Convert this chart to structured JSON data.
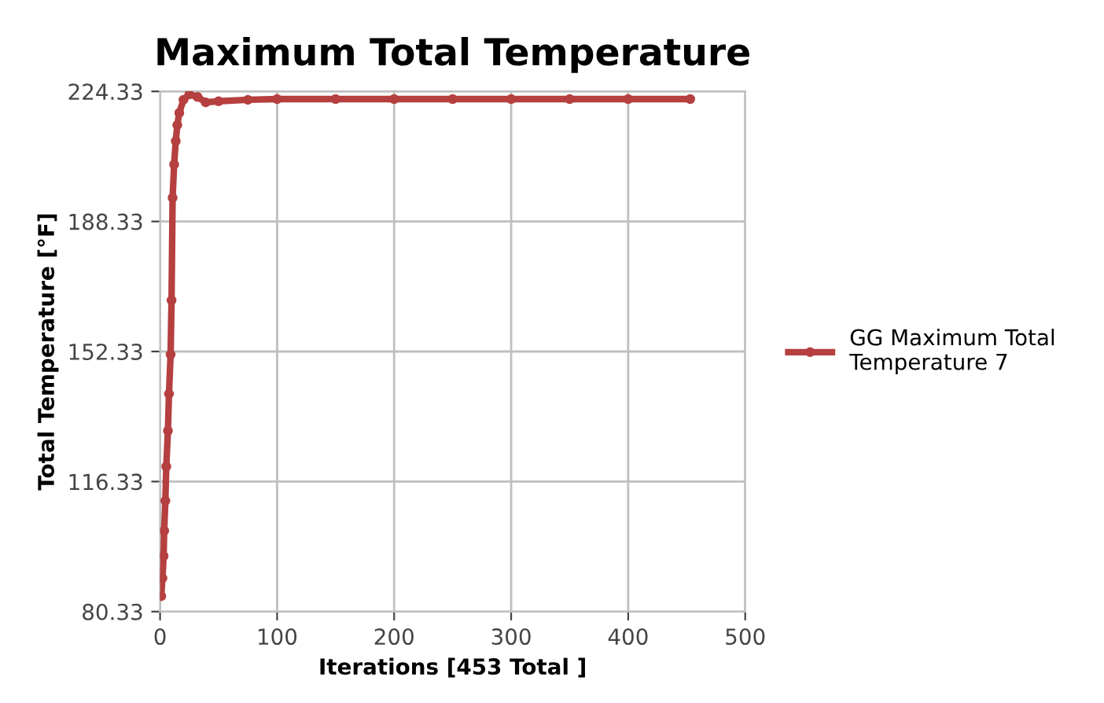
{
  "chart_data": {
    "type": "line",
    "title": "Maximum Total Temperature",
    "xlabel": "Iterations [453 Total ]",
    "ylabel": "Total Temperature [°F]",
    "series": [
      {
        "name": "GG Maximum Total Temperature 7",
        "color": "#b5403f",
        "x": [
          1,
          2,
          3,
          3.5,
          4.5,
          5.3,
          6.7,
          7.6,
          9,
          9.8,
          10.7,
          12,
          13.4,
          14.7,
          16.4,
          20,
          25,
          32,
          39,
          50,
          75,
          100,
          150,
          200,
          250,
          300,
          350,
          400,
          453
        ],
        "values": [
          84.6,
          89.6,
          95.7,
          102.7,
          111.0,
          120.5,
          130.4,
          140.6,
          151.5,
          166.5,
          194.9,
          204.1,
          210.6,
          215.0,
          218.4,
          222.0,
          223.5,
          222.8,
          221.3,
          221.6,
          222.0,
          222.2,
          222.2,
          222.2,
          222.2,
          222.2,
          222.2,
          222.2,
          222.2
        ]
      }
    ],
    "xlim": [
      0,
      500
    ],
    "xticks": [
      0,
      100,
      200,
      300,
      400,
      500
    ],
    "ylim": [
      80.33,
      224.33
    ],
    "yticks": [
      {
        "value": 80.33,
        "label": "80.33"
      },
      {
        "value": 116.33,
        "label": "116.33"
      },
      {
        "value": 152.33,
        "label": "152.33"
      },
      {
        "value": 188.33,
        "label": "188.33"
      },
      {
        "value": 224.33,
        "label": "224.33"
      }
    ],
    "grid": true,
    "legend": "right",
    "marker": "circle",
    "line_style": "solid"
  }
}
